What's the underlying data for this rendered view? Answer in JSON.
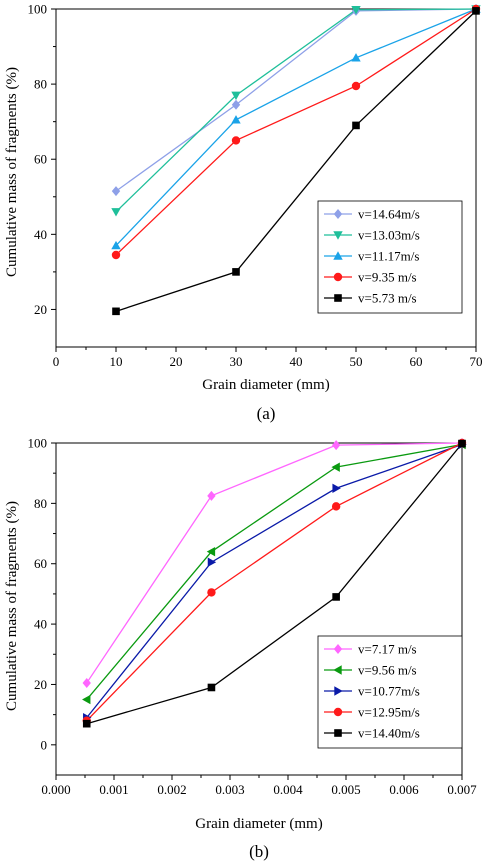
{
  "chart_data": [
    {
      "type": "line",
      "panel_label": "(a)",
      "xlabel": "Grain diameter (mm)",
      "ylabel": "Cumulative mass of fragments (%)",
      "xlim": [
        0,
        70
      ],
      "ylim": [
        10,
        100
      ],
      "xticks": [
        0,
        10,
        20,
        30,
        40,
        50,
        60,
        70
      ],
      "yticks": [
        20,
        40,
        60,
        80,
        100
      ],
      "xticks_minor": [
        5,
        15,
        25,
        35,
        45,
        55,
        65
      ],
      "yticks_minor": [
        30,
        50,
        70,
        90
      ],
      "x": [
        10,
        30,
        50,
        70
      ],
      "legend_position": "lower-right",
      "series": [
        {
          "name": "v=14.64m/s",
          "color": "#8ea0e8",
          "marker": "diamond",
          "values": [
            51.5,
            74.5,
            99.5,
            100
          ]
        },
        {
          "name": "v=13.03m/s",
          "color": "#1fbf9a",
          "marker": "triangle-down",
          "values": [
            46,
            77,
            99.8,
            100
          ]
        },
        {
          "name": "v=11.17m/s",
          "color": "#1aa3e8",
          "marker": "triangle-up",
          "values": [
            37,
            70.5,
            87,
            100
          ]
        },
        {
          "name": "v=9.35  m/s",
          "color": "#ff1a1a",
          "marker": "circle",
          "values": [
            34.5,
            65,
            79.5,
            100
          ]
        },
        {
          "name": "v=5.73  m/s",
          "color": "#000000",
          "marker": "square",
          "values": [
            19.5,
            30,
            69,
            99.5
          ]
        }
      ]
    },
    {
      "type": "line",
      "panel_label": "(b)",
      "xlabel": "Grain diameter (mm)",
      "ylabel": "Cumulative mass of fragments (%)",
      "xlim": [
        0,
        0.007
      ],
      "ylim": [
        -10,
        100
      ],
      "xticks": [
        "0.000",
        "0.001",
        "0.002",
        "0.003",
        "0.004",
        "0.005",
        "0.006",
        "0.007"
      ],
      "yticks": [
        0,
        20,
        40,
        60,
        80,
        100
      ],
      "xticks_minor": [
        0.0005,
        0.0015,
        0.0025,
        0.0035,
        0.0045,
        0.0055,
        0.0065
      ],
      "yticks_minor": [
        10,
        30,
        50,
        70,
        90
      ],
      "x": [
        0.00053,
        0.00268,
        0.00483,
        0.007
      ],
      "legend_position": "lower-right",
      "series": [
        {
          "name": "v=7.17  m/s",
          "color": "#ff66ff",
          "marker": "diamond",
          "values": [
            20.5,
            82.5,
            99.3,
            100
          ]
        },
        {
          "name": "v=9.56  m/s",
          "color": "#0a9a10",
          "marker": "triangle-left",
          "values": [
            15,
            64,
            92,
            99.5
          ]
        },
        {
          "name": "v=10.77m/s",
          "color": "#0a1aa8",
          "marker": "triangle-right",
          "values": [
            9,
            60.5,
            85,
            99.5
          ]
        },
        {
          "name": "v=12.95m/s",
          "color": "#ff1a1a",
          "marker": "circle",
          "values": [
            8,
            50.5,
            79,
            100
          ]
        },
        {
          "name": "v=14.40m/s",
          "color": "#000000",
          "marker": "square",
          "values": [
            7,
            19,
            49,
            99.8
          ]
        }
      ]
    }
  ]
}
